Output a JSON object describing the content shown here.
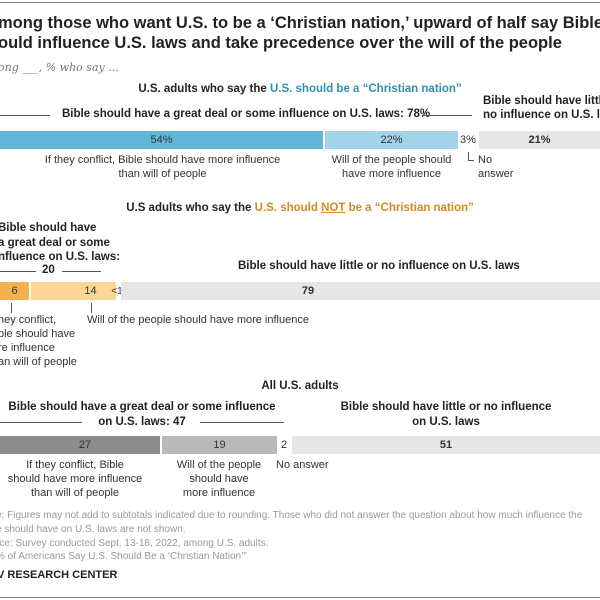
{
  "title": [
    "mong those who want U.S. to be a ‘Christian nation,’ upward of half say Bible",
    "ould influence U.S. laws and take precedence over the will of the people"
  ],
  "subtitle": "ong ___, % who say ...",
  "colors": {
    "blue_dark": "#62b6d8",
    "blue_light": "#a3d3e8",
    "orange_dark": "#f3b24e",
    "orange_light": "#fdd594",
    "gray_dark": "#8c8c8c",
    "gray_mid": "#b9b9b9",
    "gray_light": "#e6e6e6",
    "accent_blue": "#2f8fb3",
    "accent_orange": "#d08a22"
  },
  "chart_data": [
    {
      "type": "bar",
      "stacked": true,
      "group": "U.S. adults who say the U.S. should be a “Christian nation”",
      "heading": {
        "pre": "U.S. adults who say the ",
        "hl": "U.S. should be a “Christian nation”"
      },
      "bracket_left": "Bible should have a great deal or some influence on U.S. laws: 78%",
      "bracket_right": [
        "Bible should have little",
        "no influence on U.S. la"
      ],
      "segments": [
        {
          "label": "If they conflict, Bible should have more influence than will of people",
          "value": 54,
          "text": "54%"
        },
        {
          "label": "Will of the people should have more influence",
          "value": 22,
          "text": "22%"
        },
        {
          "label": "No answer",
          "value": 3,
          "text": "3%"
        },
        {
          "label": "Bible should have little or no influence on U.S. laws",
          "value": 21,
          "text": "21%"
        }
      ],
      "labels": {
        "s1": [
          "If they conflict, Bible should have more influence",
          "than will of people"
        ],
        "s2": [
          "Will of the people should",
          "have more influence"
        ],
        "s3": [
          "No",
          "answer"
        ]
      }
    },
    {
      "type": "bar",
      "stacked": true,
      "group": "U.S adults who say the U.S. should NOT be a “Christian nation”",
      "heading": {
        "pre": "U.S adults who say the ",
        "hl1": "U.S. should ",
        "hl2": "NOT",
        "hl3": " be a “Christian nation”"
      },
      "bracket_left": [
        "Bible should have",
        "a great deal or some",
        "nfluence on U.S. laws:"
      ],
      "bracket_total": "20",
      "right_label": "Bible should have little or no influence on U.S. laws",
      "segments": [
        {
          "value": 6,
          "text": "6"
        },
        {
          "value": 14,
          "text": "14"
        },
        {
          "value": 0.5,
          "text": "<1"
        },
        {
          "value": 79,
          "text": "79"
        }
      ],
      "labels": {
        "s1": [
          "hey conflict,",
          "ble should have",
          "re influence",
          "an will of people"
        ],
        "s2": "Will of the people should have more influence"
      }
    },
    {
      "type": "bar",
      "stacked": true,
      "group": "All U.S. adults",
      "heading": "All U.S. adults",
      "bracket_left": [
        "Bible should have a great deal or some influence",
        "on U.S. laws: 47"
      ],
      "right_label": [
        "Bible should have little or no influence",
        "on U.S. laws"
      ],
      "segments": [
        {
          "value": 27,
          "text": "27"
        },
        {
          "value": 19,
          "text": "19"
        },
        {
          "value": 2,
          "text": "2"
        },
        {
          "value": 51,
          "text": "51"
        }
      ],
      "labels": {
        "s1": [
          "If they conflict, Bible",
          "should have more influence",
          "than will of people"
        ],
        "s2": [
          "Will of the people",
          "should have",
          "more influence"
        ],
        "s3": "No answer"
      }
    }
  ],
  "notes": [
    "e: Figures may not add to subtotals indicated due to rounding. Those who did not answer the question about how much influence the",
    "e should have on U.S. laws are not shown.",
    "rce: Survey conducted Sept. 13-18, 2022, among U.S. adults.",
    "% of Americans Say U.S. Should Be a ‘Christian Nation’”"
  ],
  "logo": "V RESEARCH CENTER"
}
